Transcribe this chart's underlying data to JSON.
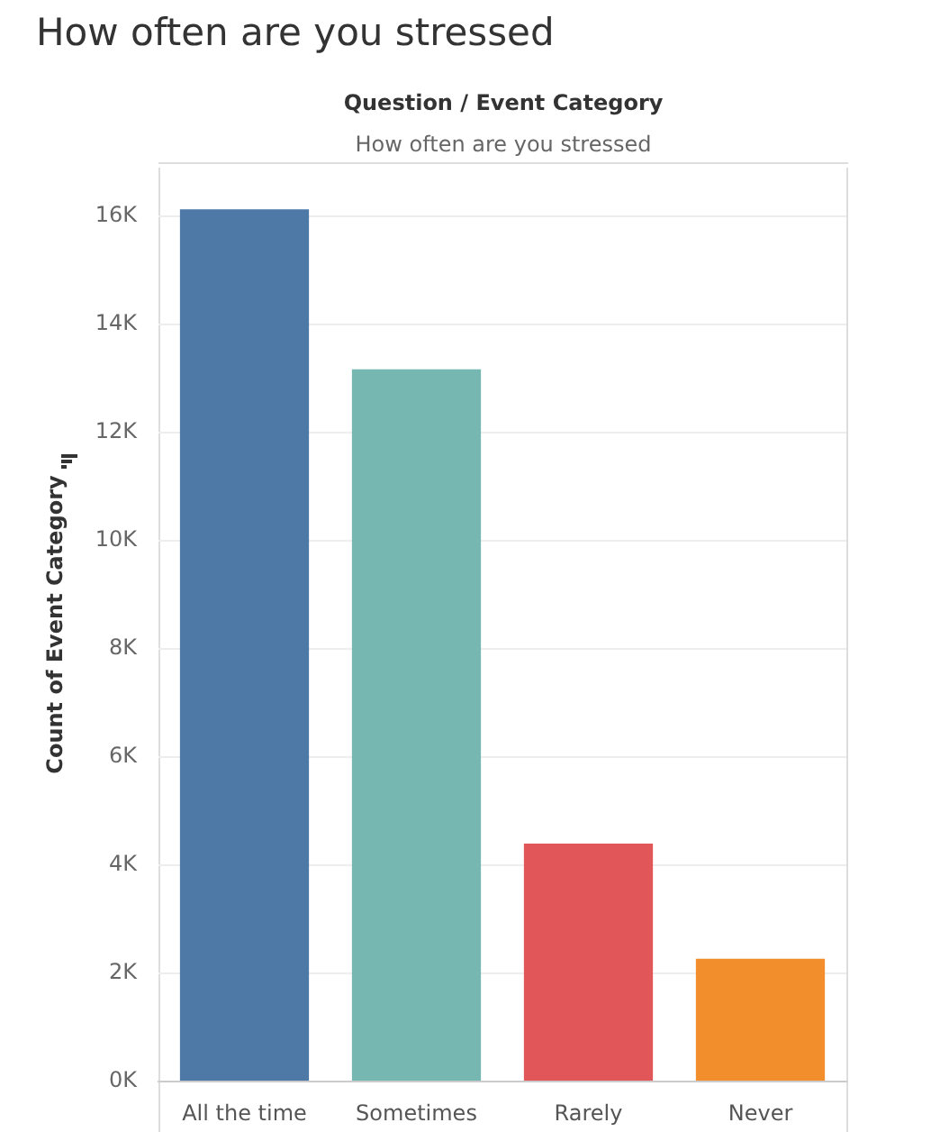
{
  "chart_data": {
    "type": "bar",
    "title": "How often are you stressed",
    "annotations": [
      "Question / Event Category",
      "How often are you stressed"
    ],
    "ylabel": "Count of Event Category",
    "categories": [
      "All the time",
      "Sometimes",
      "Rarely",
      "Never"
    ],
    "values": [
      16130,
      13170,
      4400,
      2270
    ],
    "colors": [
      "#4e79a7",
      "#76b7b2",
      "#e15759",
      "#f28e2b"
    ],
    "ylim": [
      0,
      16900
    ],
    "yticks": [
      {
        "value": 0,
        "label": "0K"
      },
      {
        "value": 2000,
        "label": "2K"
      },
      {
        "value": 4000,
        "label": "4K"
      },
      {
        "value": 6000,
        "label": "6K"
      },
      {
        "value": 8000,
        "label": "8K"
      },
      {
        "value": 10000,
        "label": "10K"
      },
      {
        "value": 12000,
        "label": "12K"
      },
      {
        "value": 14000,
        "label": "14K"
      },
      {
        "value": 16000,
        "label": "16K"
      }
    ],
    "grid": "y",
    "legend": false
  }
}
